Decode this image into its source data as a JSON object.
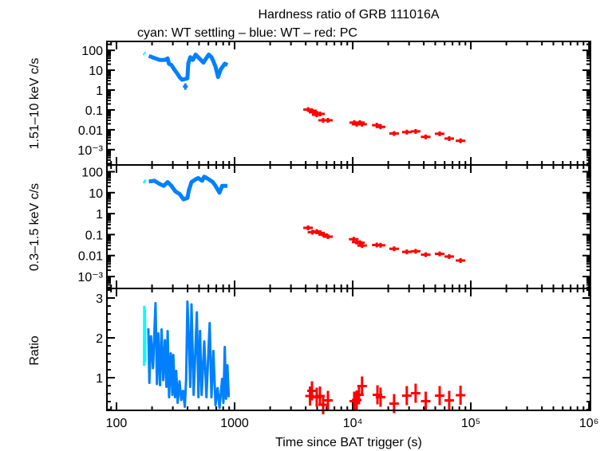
{
  "title": "Hardness ratio of GRB 111016A",
  "subtitle": "cyan: WT settling – blue: WT – red: PC",
  "colors": {
    "cyan": "#00ffff",
    "blue": "#0080ff",
    "red": "#ff0000",
    "axis": "#000000"
  },
  "chart_data": [
    {
      "type": "scatter",
      "panel": "top",
      "ylabel": "1.51–10 keV c/s",
      "yscale": "log",
      "ylim": [
        0.00017,
        280
      ],
      "yticks": [
        {
          "v": 100,
          "label": "100"
        },
        {
          "v": 10,
          "label": "10"
        },
        {
          "v": 1,
          "label": "1"
        },
        {
          "v": 0.1,
          "label": "0.1"
        },
        {
          "v": 0.01,
          "label": "0.01"
        },
        {
          "v": 0.001,
          "label": "10⁻³"
        }
      ],
      "series": [
        {
          "mode": "WT settling",
          "color": "cyan",
          "x": [
            170,
            174
          ],
          "y": [
            72,
            66
          ]
        },
        {
          "mode": "WT",
          "color": "blue",
          "x": [
            188,
            209,
            232,
            257,
            271,
            278,
            292,
            308,
            325,
            342,
            360,
            399,
            405,
            421,
            443,
            467,
            491,
            518,
            545,
            574,
            605,
            637,
            654,
            689,
            725,
            764,
            826,
            869
          ],
          "y": [
            52,
            41,
            33,
            33,
            39,
            21,
            18,
            11,
            7.1,
            4.5,
            3.3,
            3.9,
            21,
            45,
            33,
            61,
            45,
            33,
            24,
            39,
            61,
            45,
            33,
            15,
            4.5,
            11,
            21,
            18
          ]
        },
        {
          "mode": "WT",
          "color": "blue",
          "x": [
            383
          ],
          "y": [
            1.5
          ]
        },
        {
          "mode": "PC",
          "color": "red",
          "x": [
            4190,
            4520,
            4660,
            4960,
            5280,
            5620,
            6170,
            10300,
            10800,
            11500,
            12000,
            16000,
            17200,
            22400,
            28700,
            34100,
            41500,
            54500,
            65600,
            81800
          ],
          "y": [
            0.104,
            0.091,
            0.076,
            0.057,
            0.063,
            0.03,
            0.03,
            0.023,
            0.019,
            0.023,
            0.019,
            0.017,
            0.014,
            0.0065,
            0.0076,
            0.0083,
            0.0044,
            0.0063,
            0.0036,
            0.0028
          ]
        }
      ]
    },
    {
      "type": "scatter",
      "panel": "middle",
      "ylabel": "0.3–1.5 keV c/s",
      "yscale": "log",
      "ylim": [
        0.00027,
        210
      ],
      "yticks": [
        {
          "v": 100,
          "label": "100"
        },
        {
          "v": 10,
          "label": "10"
        },
        {
          "v": 1,
          "label": "1"
        },
        {
          "v": 0.1,
          "label": "0.1"
        },
        {
          "v": 0.01,
          "label": "0.01"
        },
        {
          "v": 0.001,
          "label": "10⁻³"
        }
      ],
      "series": [
        {
          "mode": "WT settling",
          "color": "cyan",
          "x": [
            170,
            176
          ],
          "y": [
            36,
            32
          ]
        },
        {
          "mode": "WT",
          "color": "blue",
          "x": [
            188,
            209,
            232,
            251,
            271,
            292,
            315,
            342,
            370,
            399,
            410,
            432,
            467,
            491,
            531,
            554,
            605,
            654,
            689,
            745,
            784,
            869
          ],
          "y": [
            34,
            37,
            26,
            21,
            32,
            21,
            11.6,
            8.7,
            4.8,
            5.6,
            13,
            32,
            43,
            50,
            37,
            58,
            43,
            32,
            21,
            10,
            21,
            21
          ]
        },
        {
          "mode": "PC",
          "color": "red",
          "x": [
            4190,
            4560,
            4960,
            5280,
            5620,
            6170,
            10200,
            10800,
            11500,
            12000,
            16000,
            17200,
            22400,
            28700,
            34100,
            41500,
            54500,
            65600,
            81800
          ],
          "y": [
            0.21,
            0.13,
            0.14,
            0.12,
            0.1,
            0.08,
            0.06,
            0.044,
            0.041,
            0.03,
            0.032,
            0.031,
            0.021,
            0.015,
            0.016,
            0.011,
            0.012,
            0.009,
            0.0058
          ]
        }
      ]
    },
    {
      "type": "scatter",
      "panel": "bottom",
      "ylabel": "Ratio",
      "yscale": "linear",
      "ylim": [
        0.18,
        3.24
      ],
      "yticks": [
        {
          "v": 1,
          "label": "1"
        },
        {
          "v": 2,
          "label": "2"
        },
        {
          "v": 3,
          "label": "3"
        }
      ],
      "series": [
        {
          "mode": "WT settling",
          "color": "cyan",
          "x": [
            171,
            172,
            173,
            174,
            175
          ],
          "y": [
            1.3,
            2.78,
            1.5,
            2.7,
            1.4
          ]
        },
        {
          "mode": "WT",
          "color": "blue",
          "x": [
            186,
            190,
            196,
            204,
            214,
            220,
            226,
            234,
            241,
            249,
            257,
            265,
            271,
            279,
            288,
            297,
            303,
            313,
            320,
            330,
            342,
            354,
            366,
            379,
            389,
            399,
            410,
            421,
            432,
            450,
            479,
            494,
            510,
            526,
            554,
            577,
            615,
            637,
            661,
            689,
            718,
            745,
            784,
            804,
            826,
            847,
            869,
            893
          ],
          "y": [
            2.24,
            0.87,
            2.04,
            1.24,
            2.87,
            0.84,
            2.11,
            0.81,
            2.21,
            0.94,
            1.94,
            0.77,
            2.17,
            0.51,
            1.61,
            0.57,
            1.57,
            0.51,
            1.17,
            0.37,
            0.91,
            0.44,
            0.67,
            0.27,
            0.97,
            2.91,
            1.97,
            0.77,
            2.84,
            0.57,
            2.64,
            0.51,
            2.17,
            0.57,
            1.91,
            0.51,
            2.37,
            0.51,
            1.67,
            0.31,
            0.74,
            0.24,
            0.97,
            0.37,
            1.77,
            0.47,
            1.31,
            0.51
          ]
        },
        {
          "mode": "PC",
          "color": "red",
          "x": [
            4350,
            4520,
            4960,
            5280,
            5620,
            6170,
            10300,
            10800,
            11300,
            12000,
            16200,
            17200,
            22400,
            28700,
            34100,
            41500,
            54500,
            65600,
            81800
          ],
          "y": [
            0.54,
            0.67,
            0.51,
            0.54,
            0.32,
            0.43,
            0.41,
            0.44,
            0.57,
            0.79,
            0.57,
            0.51,
            0.35,
            0.55,
            0.61,
            0.41,
            0.55,
            0.43,
            0.56
          ]
        }
      ]
    }
  ],
  "xaxis": {
    "label": "Time since BAT trigger (s)",
    "scale": "log",
    "xlim": [
      83,
      1030000
    ],
    "ticks": [
      {
        "v": 100,
        "label": "100"
      },
      {
        "v": 1000,
        "label": "1000"
      },
      {
        "v": 10000,
        "label": "10⁴"
      },
      {
        "v": 100000,
        "label": "10⁵"
      },
      {
        "v": 1000000,
        "label": "10⁶"
      }
    ]
  }
}
